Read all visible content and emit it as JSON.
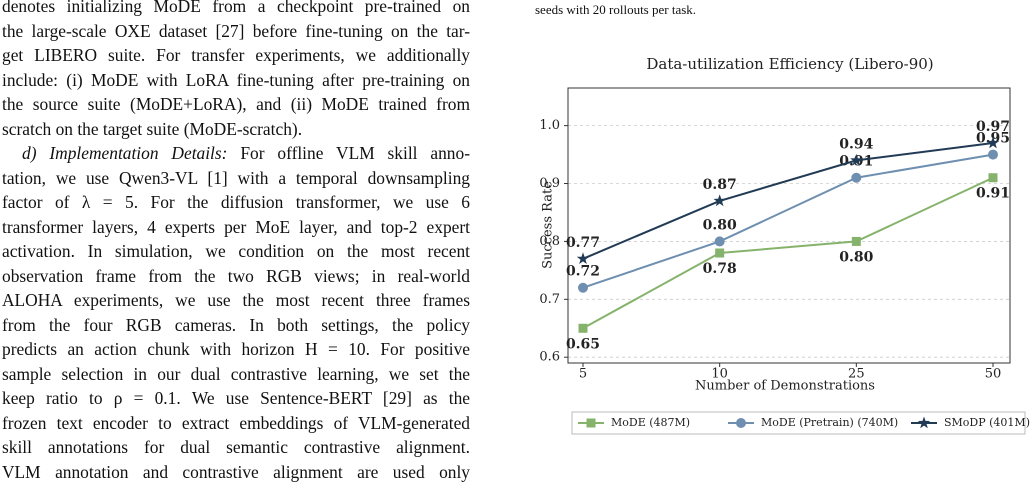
{
  "text": {
    "para1": [
      "denotes initializing MoDE from a checkpoint pre-trained on",
      "the large-scale OXE dataset [27] before fine-tuning on the tar-",
      "get LIBERO suite. For transfer experiments, we additionally",
      "include: (i) MoDE with LoRA fine-tuning after pre-training on",
      "the source suite (MoDE+LoRA), and (ii) MoDE trained from",
      "scratch on the target suite (MoDE-scratch)."
    ],
    "para2_head": "d) Implementation Details:",
    "para2": [
      "For offline VLM skill anno-",
      "tation, we use Qwen3-VL [1] with a temporal downsampling",
      "factor of λ = 5. For the diffusion transformer, we use 6",
      "transformer layers, 4 experts per MoE layer, and top-2 expert",
      "activation. In simulation, we condition on the most recent",
      "observation frame from the two RGB views; in real-world",
      "ALOHA experiments, we use the most recent three frames",
      "from the four RGB cameras. In both settings, the policy",
      "predicts an action chunk with horizon H = 10. For positive",
      "sample selection in our dual contrastive learning, we set the",
      "keep ratio to ρ = 0.1. We use Sentence-BERT [29] as the",
      "frozen text encoder to extract embeddings of VLM-generated",
      "skill annotations for dual semantic contrastive alignment.",
      "VLM annotation and contrastive alignment are used only"
    ],
    "caption_tail": "seeds with 20 rollouts per task."
  },
  "chart_data": {
    "type": "line",
    "title": "Data-utilization Efficiency (Libero-90)",
    "x_label": "Number of Demonstrations",
    "y_label": "Success Rate",
    "categories": [
      "5",
      "10",
      "25",
      "50"
    ],
    "series": [
      {
        "name": "MoDE (487M)",
        "color": "#86b36b",
        "marker": "square",
        "label_side": "below",
        "values": [
          0.65,
          0.78,
          0.8,
          0.91
        ],
        "value_labels": [
          "0.65",
          "0.78",
          "0.80",
          "0.91"
        ]
      },
      {
        "name": "MoDE (Pretrain) (740M)",
        "color": "#6e8fb0",
        "marker": "circle",
        "label_side": "above",
        "values": [
          0.72,
          0.8,
          0.91,
          0.95
        ],
        "value_labels": [
          "0.72",
          "0.80",
          "0.91",
          "0.95"
        ]
      },
      {
        "name": "SMoDP (401M)",
        "color": "#213b55",
        "marker": "star",
        "label_side": "above",
        "values": [
          0.77,
          0.87,
          0.94,
          0.97
        ],
        "value_labels": [
          "0.77",
          "0.87",
          "0.94",
          "0.97"
        ]
      }
    ],
    "ylim": [
      0.59,
      1.065
    ],
    "yticks": [
      {
        "value": 0.6,
        "label": "0.6"
      },
      {
        "value": 0.7,
        "label": "0.7"
      },
      {
        "value": 0.8,
        "label": "0.8"
      },
      {
        "value": 0.9,
        "label": "0.9"
      },
      {
        "value": 1.0,
        "label": "1.0"
      }
    ],
    "grid": true,
    "legend": "bottom"
  }
}
